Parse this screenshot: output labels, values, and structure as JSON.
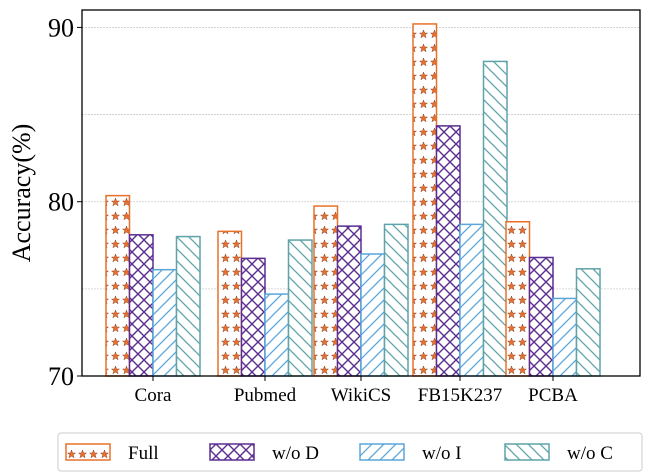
{
  "chart_data": {
    "type": "bar",
    "title": "",
    "xlabel": "",
    "ylabel": "Accuracy(%)",
    "ylim": [
      70,
      91
    ],
    "yticks": [
      70,
      80,
      90
    ],
    "grid": true,
    "legend_placement": "bottom",
    "categories": [
      "Cora",
      "Pubmed",
      "WikiCS",
      "FB15K237",
      "PCBA"
    ],
    "series": [
      {
        "name": "Full",
        "values": [
          80.35,
          78.3,
          79.75,
          90.2,
          78.85
        ],
        "color": "#e8702a",
        "hatch": "stars"
      },
      {
        "name": "w/o D",
        "values": [
          78.1,
          76.75,
          78.6,
          84.35,
          76.8
        ],
        "color": "#5a2d91",
        "hatch": "crosshatch"
      },
      {
        "name": "w/o I",
        "values": [
          76.1,
          74.7,
          77.0,
          78.7,
          74.45
        ],
        "color": "#5aa6d8",
        "hatch": "forward-diagonal"
      },
      {
        "name": "w/o C",
        "values": [
          78.0,
          77.8,
          78.7,
          88.05,
          76.15
        ],
        "color": "#5fa3a8",
        "hatch": "back-diagonal"
      }
    ]
  }
}
